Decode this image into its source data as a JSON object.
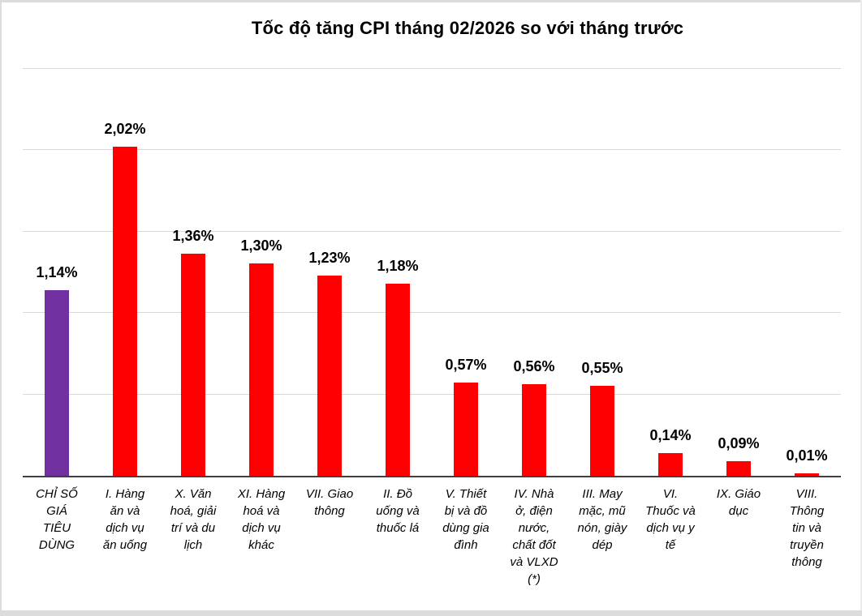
{
  "chart_data": {
    "type": "bar",
    "title": "Tốc độ tăng CPI tháng 02/2026 so với tháng trước",
    "categories": [
      "CHỈ SỐ\nGIÁ\nTIÊU\nDÙNG",
      "I. Hàng\năn và\ndịch vụ\năn uống",
      "X. Văn\nhoá, giải\ntrí và du\nlịch",
      "XI. Hàng\nhoá và\ndịch vụ\nkhác",
      "VII. Giao\nthông",
      "II. Đồ\nuống và\nthuốc lá",
      "V. Thiết\nbị và đồ\ndùng gia\nđình",
      "IV. Nhà\nở, điện\nnước,\nchất đốt\nvà VLXD\n(*)",
      "III. May\nmặc, mũ\nnón, giày\ndép",
      "VI.\nThuốc và\ndịch vụ y\ntế",
      "IX. Giáo\ndục",
      "VIII.\nThông\ntin và\ntruyền\nthông"
    ],
    "values": [
      1.14,
      2.02,
      1.36,
      1.3,
      1.23,
      1.18,
      0.57,
      0.56,
      0.55,
      0.14,
      0.09,
      0.01
    ],
    "value_labels": [
      "1,14%",
      "2,02%",
      "1,36%",
      "1,30%",
      "1,23%",
      "1,18%",
      "0,57%",
      "0,56%",
      "0,55%",
      "0,14%",
      "0,09%",
      "0,01%"
    ],
    "bar_colors": [
      "#7030A0",
      "#FF0000",
      "#FF0000",
      "#FF0000",
      "#FF0000",
      "#FF0000",
      "#FF0000",
      "#FF0000",
      "#FF0000",
      "#FF0000",
      "#FF0000",
      "#FF0000"
    ],
    "xlabel": "",
    "ylabel": "",
    "ylim": [
      0,
      2.5
    ],
    "gridline_step": 0.5,
    "grid": true,
    "legend": "none",
    "axis_color": "#3f3f3f",
    "gridline_color": "#d9d9d9"
  }
}
